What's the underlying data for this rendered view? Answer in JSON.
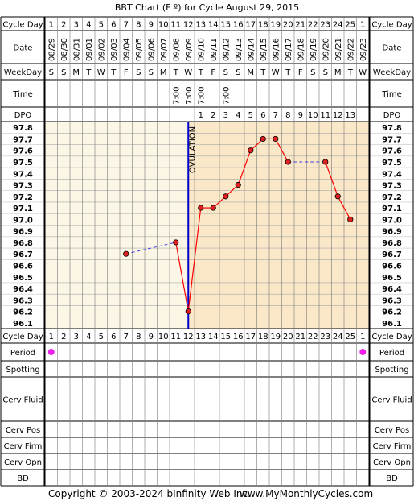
{
  "title": "BBT Chart (F º) for Cycle August 29, 2015",
  "row_labels": {
    "cycle_day": "Cycle Day",
    "date": "Date",
    "weekday": "WeekDay",
    "time": "Time",
    "dpo": "DPO",
    "period": "Period",
    "spotting": "Spotting",
    "cerv_fluid": "Cerv Fluid",
    "cerv_pos": "Cerv Pos",
    "cerv_firm": "Cerv Firm",
    "cerv_opn": "Cerv Opn",
    "bd": "BD"
  },
  "cycle_days": [
    "1",
    "2",
    "3",
    "4",
    "5",
    "6",
    "7",
    "8",
    "9",
    "10",
    "11",
    "12",
    "13",
    "14",
    "15",
    "16",
    "17",
    "18",
    "19",
    "20",
    "21",
    "22",
    "23",
    "24",
    "25",
    "1"
  ],
  "dates": [
    "08/29",
    "08/30",
    "08/31",
    "09/01",
    "09/02",
    "09/03",
    "09/04",
    "09/05",
    "09/06",
    "09/07",
    "09/08",
    "09/09",
    "09/10",
    "09/11",
    "09/12",
    "09/13",
    "09/14",
    "09/15",
    "09/16",
    "09/17",
    "09/18",
    "09/19",
    "09/20",
    "09/21",
    "09/22",
    "09/23"
  ],
  "weekdays": [
    "S",
    "S",
    "M",
    "T",
    "W",
    "T",
    "F",
    "S",
    "S",
    "M",
    "T",
    "W",
    "T",
    "F",
    "S",
    "S",
    "M",
    "T",
    "W",
    "T",
    "F",
    "S",
    "S",
    "M",
    "T",
    "W"
  ],
  "times": [
    "",
    "",
    "",
    "",
    "",
    "",
    "",
    "",
    "",
    "",
    "7:00",
    "7:00",
    "7:00",
    "",
    "7:00",
    "",
    "",
    "",
    "",
    "",
    "",
    "",
    "",
    "",
    "",
    ""
  ],
  "dpo": [
    "",
    "",
    "",
    "",
    "",
    "",
    "",
    "",
    "",
    "",
    "",
    "",
    "1",
    "2",
    "3",
    "4",
    "5",
    "6",
    "7",
    "8",
    "9",
    "10",
    "11",
    "12",
    "13",
    ""
  ],
  "period_days": [
    1,
    26
  ],
  "ovulation_label": "OVULATION",
  "copyright": "Copyright © 2003-2024 bInfinity Web Inc.",
  "website": "www.MyMonthlyCycles.com",
  "chart_data": {
    "type": "line",
    "title": "BBT Chart (F º) for Cycle August 29, 2015",
    "x": [
      7,
      11,
      12,
      13,
      14,
      15,
      16,
      17,
      18,
      19,
      20,
      23,
      24,
      25
    ],
    "y": [
      96.7,
      96.8,
      96.2,
      97.1,
      97.1,
      97.2,
      97.3,
      97.6,
      97.7,
      97.7,
      97.5,
      97.5,
      97.2,
      97.0
    ],
    "dashed_segments": [
      [
        7,
        11
      ],
      [
        20,
        23
      ]
    ],
    "x_range": [
      1,
      26
    ],
    "y_ticks": [
      "97.8",
      "97.7",
      "97.6",
      "97.5",
      "97.4",
      "97.3",
      "97.2",
      "97.1",
      "97.0",
      "96.9",
      "96.8",
      "96.7",
      "96.6",
      "96.5",
      "96.4",
      "96.3",
      "96.2",
      "96.1"
    ],
    "ylim": [
      96.1,
      97.8
    ],
    "ovulation_day": 12,
    "grid": true,
    "colors": {
      "pre_ovulation_bg": "#fbf6e6",
      "post_ovulation_bg": "#fbe8c8",
      "line": "#ff0000",
      "point": "#e02020",
      "dashed": "#4040e0",
      "ovulation_line": "#0000c8",
      "period": "#ee22ee"
    }
  }
}
